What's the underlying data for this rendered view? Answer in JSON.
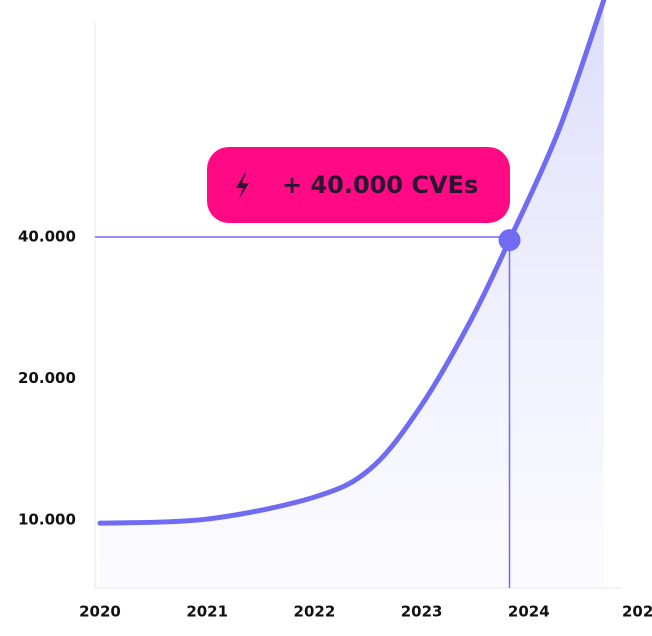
{
  "chart_data": {
    "type": "line",
    "yscale": "log",
    "x": [
      2020,
      2021,
      2022,
      2022.53,
      2023,
      2023.46,
      2023.82,
      2024.28,
      2024.7
    ],
    "series": [
      {
        "color": "#6f6cf2",
        "values": [
          9850,
          10050,
          11190,
          12900,
          17560,
          26620,
          39400,
          67500,
          127700
        ]
      }
    ],
    "xlim": [
      2020,
      2025
    ],
    "ylim": [
      7170,
      127700
    ],
    "xticks": [
      2020,
      2021,
      2022,
      2023,
      2024,
      {
        "value": 2025,
        "label": "202"
      }
    ],
    "yticks": [
      {
        "value": 10000,
        "label": "10.000"
      },
      {
        "value": 20000,
        "label": "20.000"
      },
      {
        "value": 40000,
        "label": "40.000"
      }
    ],
    "annotation": {
      "text": "+ 40.000 CVEs",
      "x": 2023.82,
      "y": 39400,
      "line_y": 40000,
      "color": "#ff0a84"
    }
  }
}
